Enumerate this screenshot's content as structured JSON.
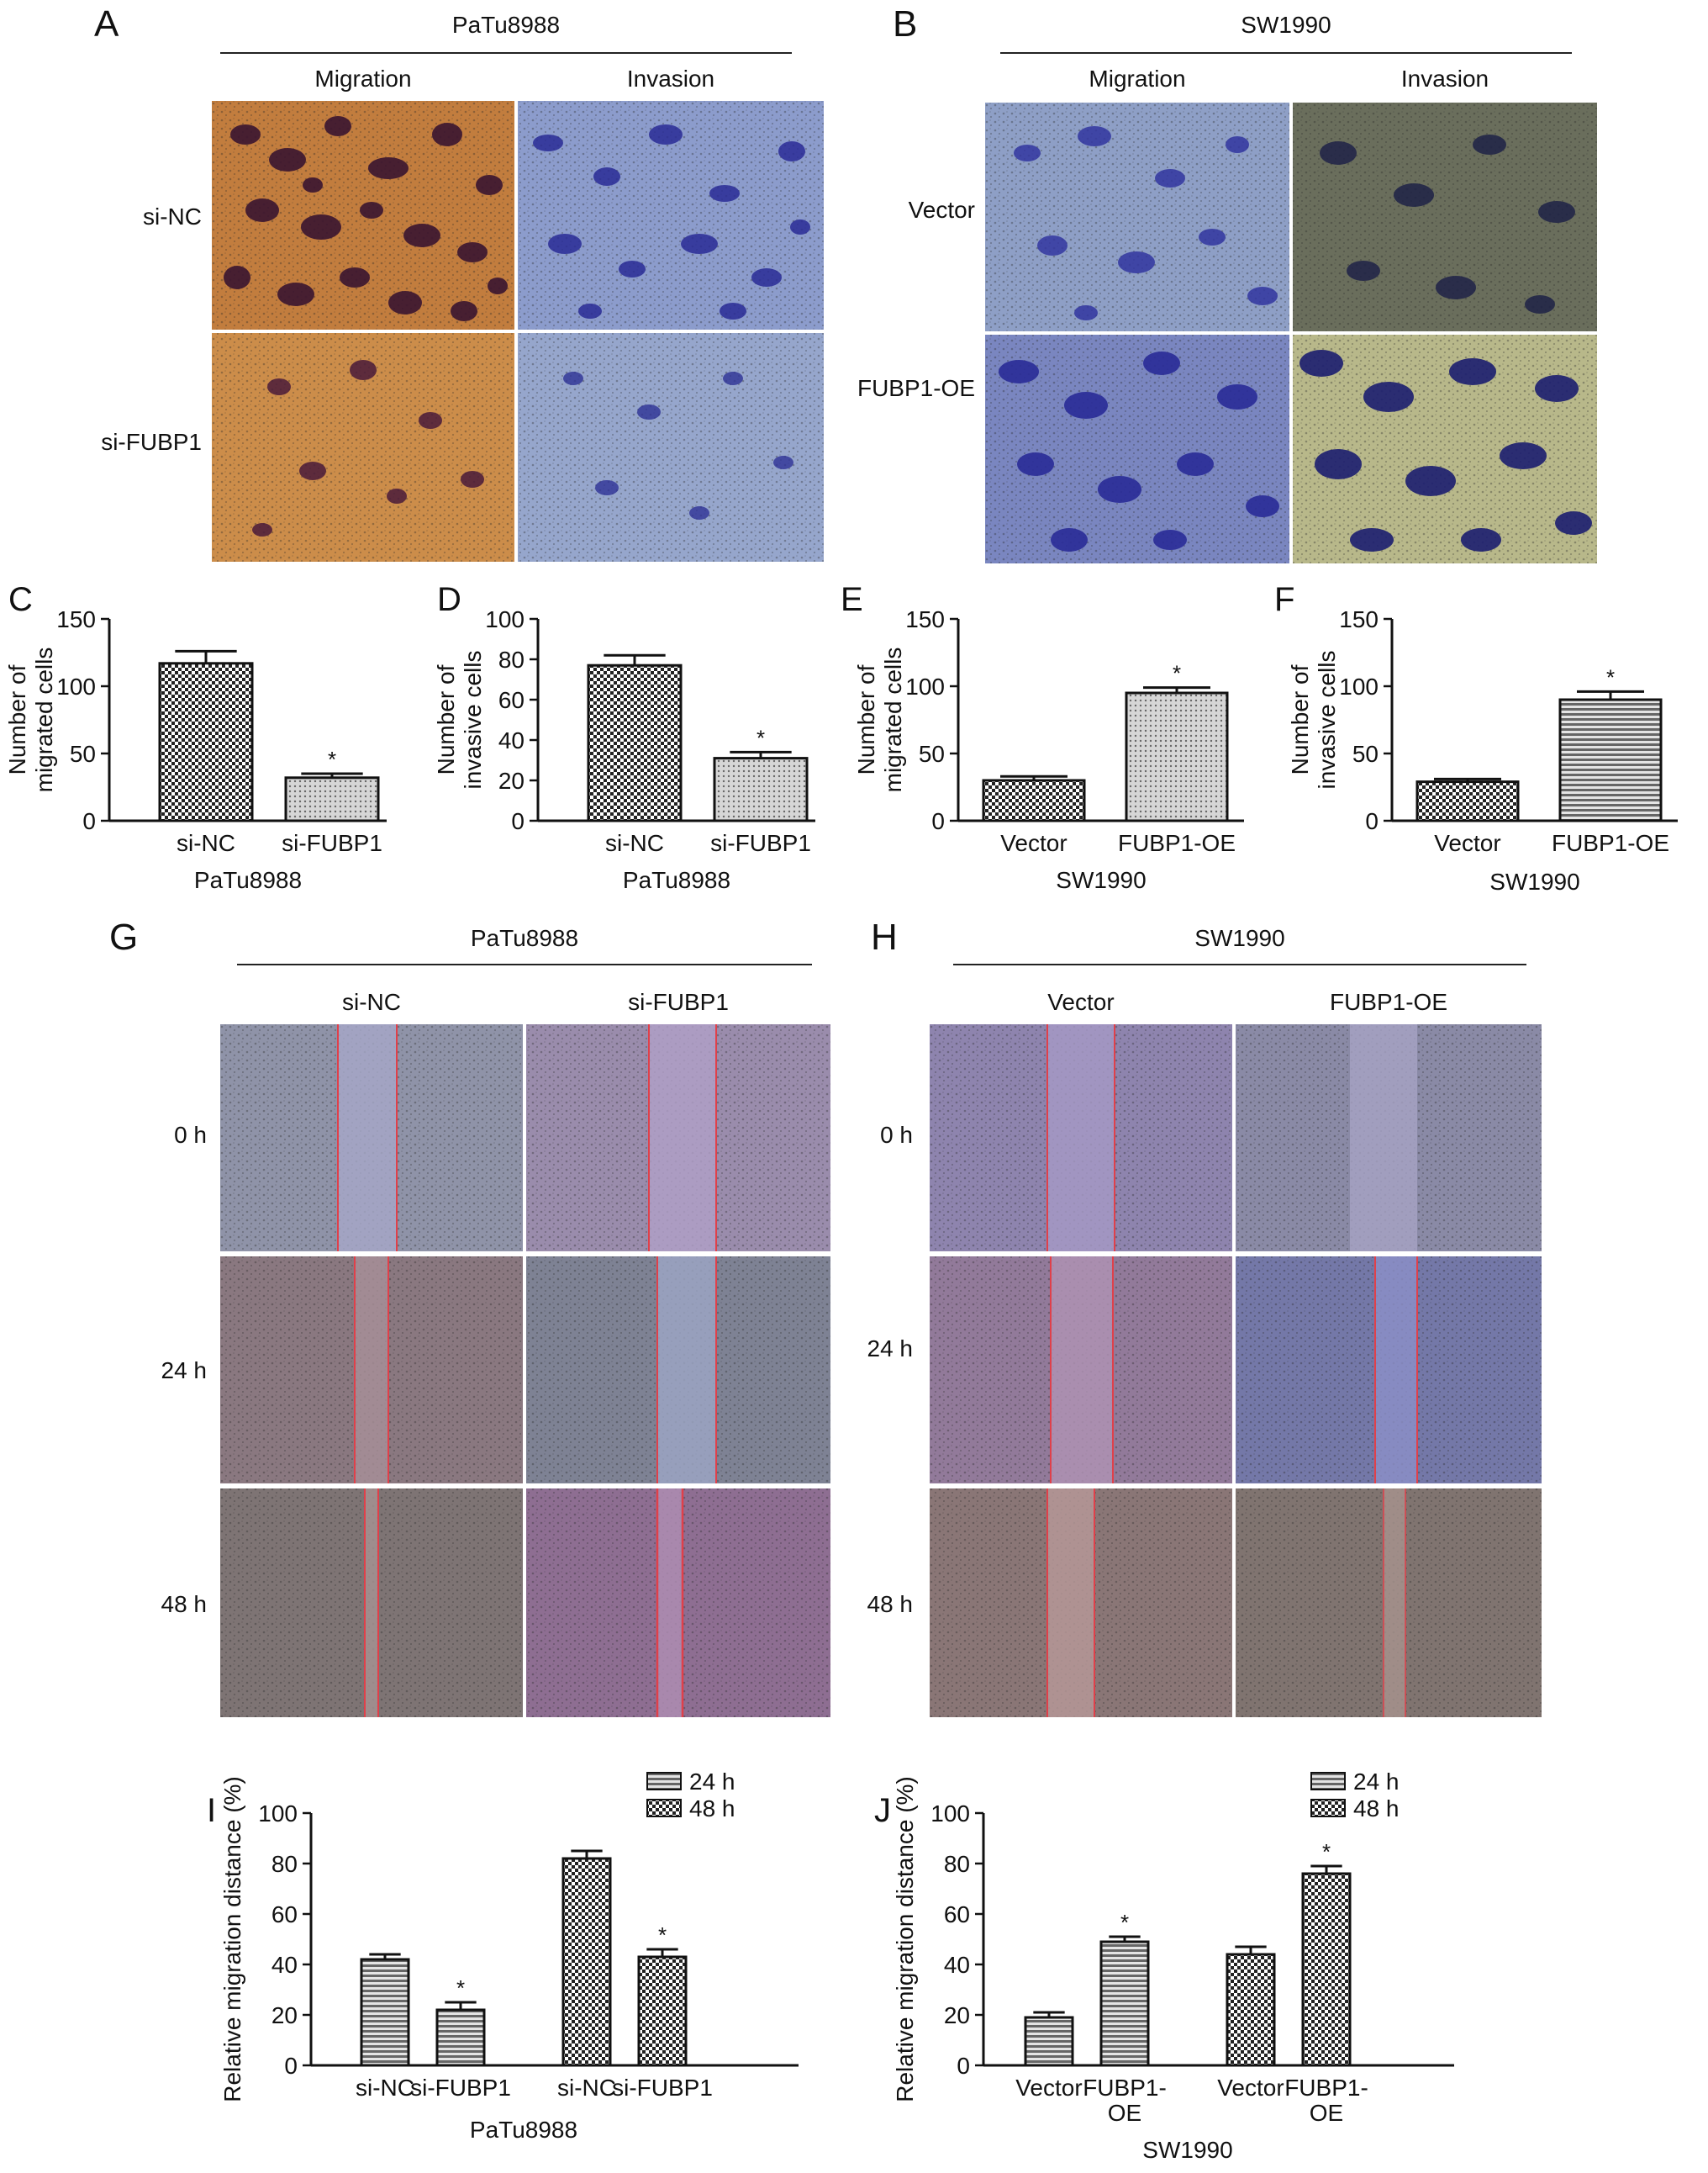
{
  "panels": {
    "A": {
      "letter": "A",
      "cell_line": "PaTu8988",
      "cols": [
        "Migration",
        "Invasion"
      ],
      "rows": [
        "si-NC",
        "si-FUBP1"
      ]
    },
    "B": {
      "letter": "B",
      "cell_line": "SW1990",
      "cols": [
        "Migration",
        "Invasion"
      ],
      "rows": [
        "Vector",
        "FUBP1-OE"
      ]
    },
    "G": {
      "letter": "G",
      "cell_line": "PaTu8988",
      "cols": [
        "si-NC",
        "si-FUBP1"
      ],
      "rows": [
        "0 h",
        "24 h",
        "48 h"
      ]
    },
    "H": {
      "letter": "H",
      "cell_line": "SW1990",
      "cols": [
        "Vector",
        "FUBP1-OE"
      ],
      "rows": [
        "0 h",
        "24 h",
        "48 h"
      ]
    }
  },
  "colors": {
    "orange_stain": "#c88a45",
    "dark_stain": "#4a1d3a",
    "blue_bg": "#8ea0c8",
    "blue_cells": "#2c2f9a",
    "scratch_line": "#e0404a",
    "bar_fill": "#d8d8d8",
    "axis": "#111111"
  },
  "chart_data": [
    {
      "id": "C",
      "letter": "C",
      "type": "bar",
      "ylabel": "Number of\nmigrated cells",
      "ylabel_lines": [
        "Number of",
        "migrated cells"
      ],
      "xlabel": "PaTu8988",
      "categories": [
        "si-NC",
        "si-FUBP1"
      ],
      "values": [
        117,
        32
      ],
      "errors": [
        9,
        3
      ],
      "significance": [
        "",
        "*"
      ],
      "ylim": [
        0,
        150
      ],
      "yticks": [
        "0",
        "50",
        "100",
        "150"
      ]
    },
    {
      "id": "D",
      "letter": "D",
      "type": "bar",
      "ylabel": "Number of\ninvasive cells",
      "ylabel_lines": [
        "Number of",
        "invasive cells"
      ],
      "xlabel": "PaTu8988",
      "categories": [
        "si-NC",
        "si-FUBP1"
      ],
      "values": [
        77,
        31
      ],
      "errors": [
        5,
        3
      ],
      "significance": [
        "",
        "*"
      ],
      "ylim": [
        0,
        100
      ],
      "yticks": [
        "0",
        "20",
        "40",
        "60",
        "80",
        "100"
      ]
    },
    {
      "id": "E",
      "letter": "E",
      "type": "bar",
      "ylabel": "Number of\nmigrated cells",
      "ylabel_lines": [
        "Number of",
        "migrated cells"
      ],
      "xlabel": "SW1990",
      "categories": [
        "Vector",
        "FUBP1-OE"
      ],
      "values": [
        30,
        95
      ],
      "errors": [
        3,
        4
      ],
      "significance": [
        "",
        "*"
      ],
      "ylim": [
        0,
        150
      ],
      "yticks": [
        "0",
        "50",
        "100",
        "150"
      ]
    },
    {
      "id": "F",
      "letter": "F",
      "type": "bar",
      "ylabel": "Number of\ninvasive cells",
      "ylabel_lines": [
        "Number of",
        "invasive cells"
      ],
      "xlabel": "SW1990",
      "categories": [
        "Vector",
        "FUBP1-OE"
      ],
      "values": [
        29,
        90
      ],
      "errors": [
        2,
        6
      ],
      "significance": [
        "",
        "*"
      ],
      "ylim": [
        0,
        150
      ],
      "yticks": [
        "0",
        "50",
        "100",
        "150"
      ]
    },
    {
      "id": "I",
      "letter": "I",
      "type": "bar",
      "ylabel": "Relative migration distance (%)",
      "xlabel": "PaTu8988",
      "categories": [
        "si-NC",
        "si-FUBP1",
        "si-NC",
        "si-FUBP1"
      ],
      "groups": [
        "24 h",
        "24 h",
        "48 h",
        "48 h"
      ],
      "values": [
        42,
        22,
        82,
        43
      ],
      "errors": [
        2,
        3,
        3,
        3
      ],
      "significance": [
        "",
        "*",
        "",
        "*"
      ],
      "legend": [
        "24 h",
        "48 h"
      ],
      "legend_position": "top-right",
      "ylim": [
        0,
        100
      ],
      "yticks": [
        "0",
        "20",
        "40",
        "60",
        "80",
        "100"
      ]
    },
    {
      "id": "J",
      "letter": "J",
      "type": "bar",
      "ylabel": "Relative migration distance (%)",
      "xlabel": "SW1990",
      "categories": [
        "Vector",
        "FUBP1-\nOE",
        "Vector",
        "FUBP1-\nOE"
      ],
      "category_lines": [
        [
          "Vector"
        ],
        [
          "FUBP1-",
          "OE"
        ],
        [
          "Vector"
        ],
        [
          "FUBP1-",
          "OE"
        ]
      ],
      "groups": [
        "24 h",
        "24 h",
        "48 h",
        "48 h"
      ],
      "values": [
        19,
        49,
        44,
        76
      ],
      "errors": [
        2,
        2,
        3,
        3
      ],
      "significance": [
        "",
        "*",
        "",
        "*"
      ],
      "legend": [
        "24 h",
        "48 h"
      ],
      "legend_position": "top-right",
      "ylim": [
        0,
        100
      ],
      "yticks": [
        "0",
        "20",
        "40",
        "60",
        "80",
        "100"
      ]
    }
  ]
}
